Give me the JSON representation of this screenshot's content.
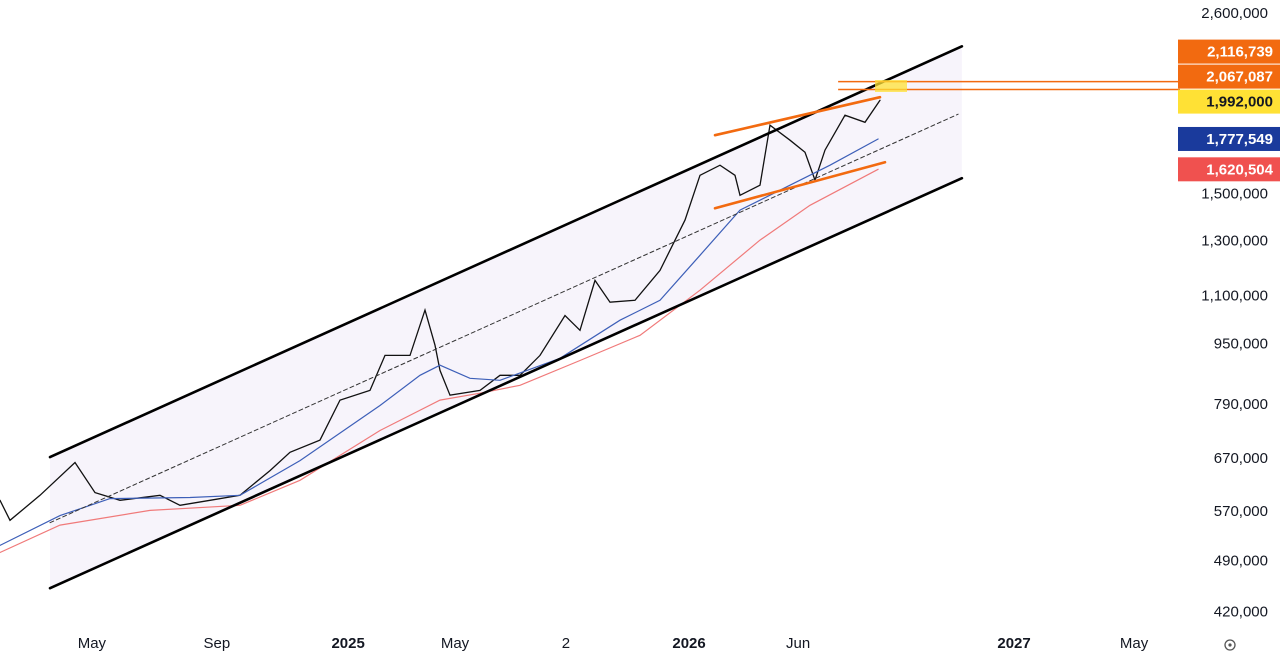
{
  "chart_data": {
    "type": "line",
    "log_scale": true,
    "grid": false,
    "xlim": [
      0,
      37.76
    ],
    "ylim": [
      361000,
      2715000
    ],
    "xticks": [
      {
        "value": 2.94,
        "label": "May"
      },
      {
        "value": 6.94,
        "label": "Sep"
      },
      {
        "value": 11.14,
        "label": "2025"
      },
      {
        "value": 14.56,
        "label": "May"
      },
      {
        "value": 18.11,
        "label": "2"
      },
      {
        "value": 22.05,
        "label": "2026"
      },
      {
        "value": 25.54,
        "label": "Jun"
      },
      {
        "value": 32.45,
        "label": "2027"
      },
      {
        "value": 36.29,
        "label": "May"
      }
    ],
    "yticks": [
      {
        "value": 2600000,
        "label": "2,600,000"
      },
      {
        "value": 1500000,
        "label": "1,500,000"
      },
      {
        "value": 1300000,
        "label": "1,300,000"
      },
      {
        "value": 1100000,
        "label": "1,100,000"
      },
      {
        "value": 950000,
        "label": "950,000"
      },
      {
        "value": 790000,
        "label": "790,000"
      },
      {
        "value": 670000,
        "label": "670,000"
      },
      {
        "value": 570000,
        "label": "570,000"
      },
      {
        "value": 490000,
        "label": "490,000"
      },
      {
        "value": 420000,
        "label": "420,000"
      }
    ],
    "channel_fill": "#f7f4fb",
    "series": [
      {
        "color": "#111111",
        "width": 1.3,
        "x": [
          0,
          0.32,
          1.28,
          2.4,
          3.04,
          3.84,
          5.12,
          5.76,
          6.72,
          7.68,
          8.64,
          9.28,
          10.24,
          10.88,
          11.84,
          12.32,
          13.12,
          13.6,
          13.92,
          14.08,
          14.4,
          15.36,
          16,
          16.64,
          17.28,
          18.08,
          18.56,
          19.04,
          19.52,
          20.32,
          21.12,
          21.92,
          22.4,
          23.04,
          23.52,
          23.68,
          24.32,
          24.64,
          25.28,
          25.76,
          26.08,
          26.4,
          27.04,
          27.68,
          28.16
        ],
        "values": [
          591000,
          556000,
          600000,
          663000,
          605000,
          591000,
          600000,
          582000,
          591000,
          600000,
          647000,
          684000,
          710000,
          802000,
          826000,
          919000,
          919000,
          1055000,
          948000,
          878000,
          814000,
          826000,
          865000,
          865000,
          919000,
          1038000,
          992000,
          1155000,
          1081000,
          1087000,
          1191000,
          1388000,
          1591000,
          1641000,
          1591000,
          1497000,
          1544000,
          1854000,
          1771000,
          1707000,
          1568000,
          1718000,
          1911000,
          1870000,
          2000000
        ]
      },
      {
        "color": "#3d5fb8",
        "width": 1.2,
        "x": [
          0,
          1.92,
          3.52,
          6.08,
          7.68,
          9.6,
          12.16,
          13.44,
          14.08,
          15.04,
          16,
          17.92,
          19.84,
          21.12,
          22.4,
          23.68,
          25.28,
          26.56,
          28.1
        ],
        "values": [
          515000,
          564000,
          594000,
          596000,
          600000,
          667000,
          789000,
          865000,
          892000,
          857000,
          852000,
          911000,
          1023000,
          1087000,
          1247000,
          1431000,
          1544000,
          1641000,
          1777549
        ]
      },
      {
        "color": "#f07a7a",
        "width": 1.2,
        "x": [
          0,
          1.92,
          4.8,
          7.68,
          9.6,
          12.16,
          14.08,
          15.36,
          16.64,
          18.56,
          20.48,
          22.4,
          24.32,
          25.92,
          28.1
        ],
        "values": [
          504000,
          548000,
          573000,
          582000,
          628000,
          731000,
          802000,
          819000,
          839000,
          905000,
          977000,
          1121000,
          1306000,
          1452000,
          1620504
        ]
      },
      {
        "color": "#000000",
        "width": 2.6,
        "x": [
          1.6,
          30.78
        ],
        "values": [
          674000,
          2358000
        ]
      },
      {
        "color": "#000000",
        "width": 2.6,
        "x": [
          1.6,
          30.78
        ],
        "values": [
          452000,
          1577000
        ]
      },
      {
        "color": "#333333",
        "width": 1,
        "dash": true,
        "x": [
          1.6,
          30.66
        ],
        "values": [
          552000,
          1917000
        ]
      },
      {
        "color": "#f26a10",
        "width": 2.6,
        "x": [
          22.88,
          28.16
        ],
        "values": [
          1798000,
          2019000
        ]
      },
      {
        "color": "#f26a10",
        "width": 2.6,
        "x": [
          22.88,
          28.32
        ],
        "values": [
          1439000,
          1656000
        ]
      }
    ],
    "hline_from": 26.82,
    "price_labels": [
      {
        "value": 2116739,
        "label": "2,116,739",
        "color": "#f26a10",
        "text_color": "#ffffff",
        "line": true
      },
      {
        "value": 2067087,
        "label": "2,067,087",
        "color": "#f26a10",
        "text_color": "#ffffff",
        "line": true
      },
      {
        "value": 1992000,
        "label": "1,992,000",
        "color": "#ffe135",
        "text_color": "#131722",
        "line": false
      },
      {
        "value": 1777549,
        "label": "1,777,549",
        "color": "#1a3a9c",
        "text_color": "#ffffff",
        "line": false
      },
      {
        "value": 1620504,
        "label": "1,620,504",
        "color": "#f0514f",
        "text_color": "#ffffff",
        "line": false
      }
    ]
  }
}
